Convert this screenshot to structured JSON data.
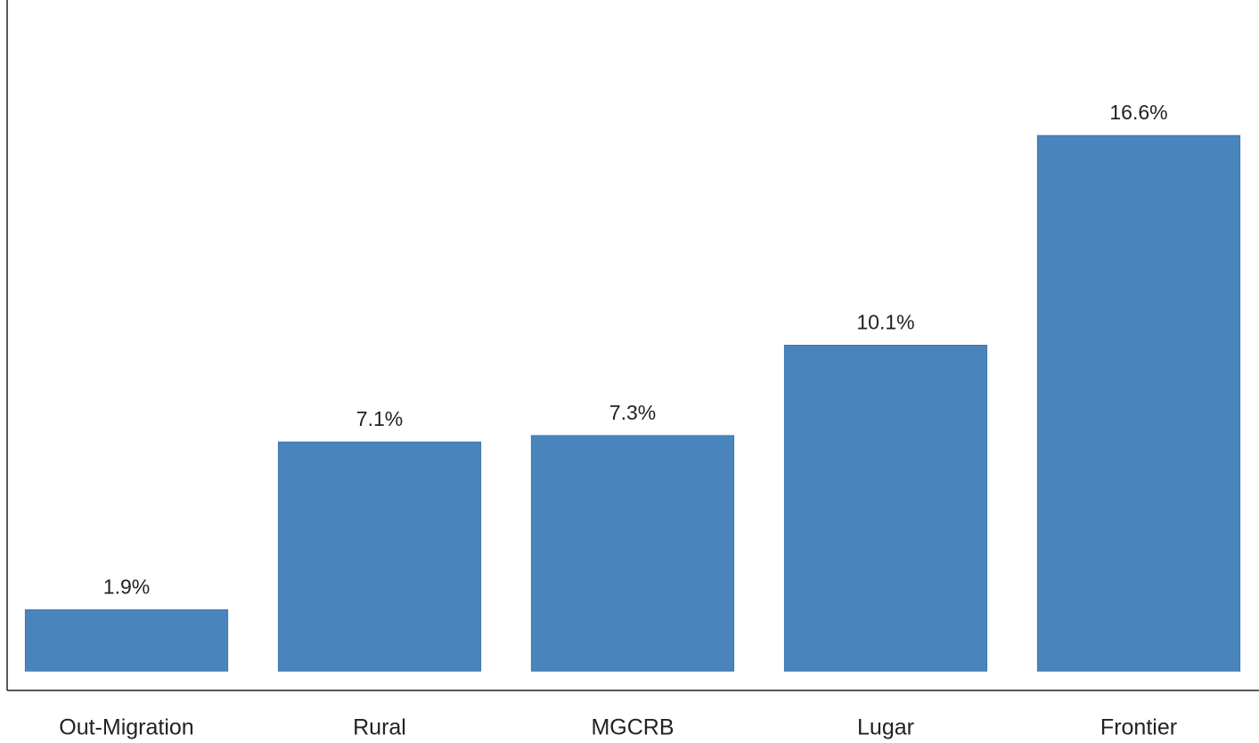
{
  "chart_data": {
    "type": "bar",
    "categories": [
      "Out-Migration",
      "Rural",
      "MGCRB",
      "Lugar",
      "Frontier"
    ],
    "values": [
      1.9,
      7.1,
      7.3,
      10.1,
      16.6
    ],
    "value_labels": [
      "1.9%",
      "7.1%",
      "7.3%",
      "10.1%",
      "16.6%"
    ],
    "color": "#4a84bc",
    "ylim": [
      -0.6,
      20.8
    ],
    "grid": false
  }
}
